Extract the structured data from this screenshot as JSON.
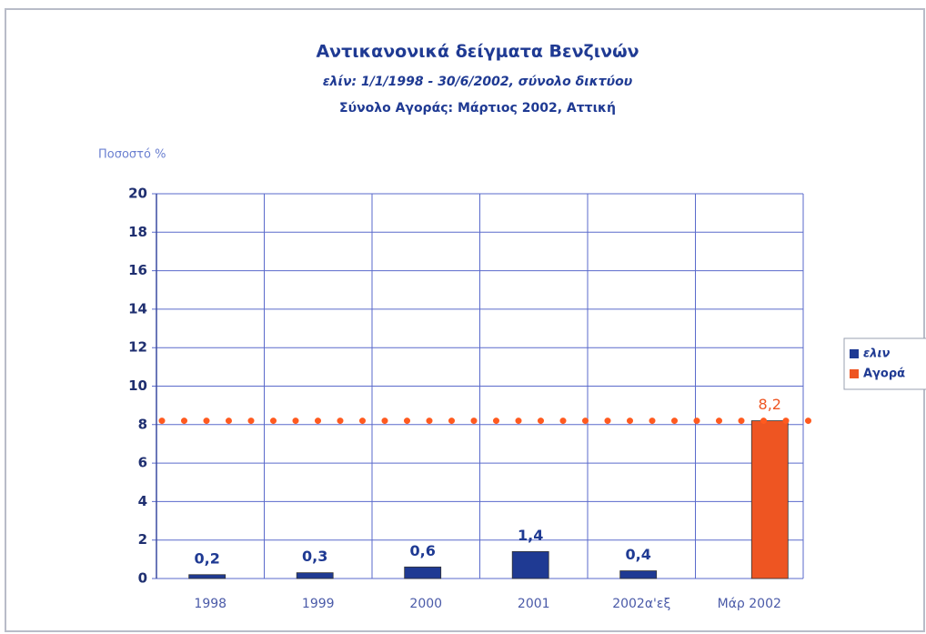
{
  "chart_data": {
    "type": "bar",
    "title": "Αντικανονικά δείγματα Βενζινών",
    "subtitle": [
      "ελίν: 1/1/1998 - 30/6/2002, σύνολο δικτύου",
      "Σύνολο Αγοράς: Μάρτιος 2002, Αττική"
    ],
    "y_label": "Ποσοστό %",
    "categories": [
      "1998",
      "1999",
      "2000",
      "2001",
      "2002α'εξ",
      "Μάρ 2002"
    ],
    "series": [
      {
        "name": "ελιν",
        "color": "#1f3a93",
        "values": [
          0.2,
          0.3,
          0.6,
          1.4,
          0.4,
          null
        ],
        "value_labels": [
          "0,2",
          "0,3",
          "0,6",
          "1,4",
          "0,4",
          null
        ]
      },
      {
        "name": "Αγορά",
        "color": "#ee5522",
        "values": [
          null,
          null,
          null,
          null,
          null,
          8.2
        ],
        "value_labels": [
          null,
          null,
          null,
          null,
          null,
          "8,2"
        ]
      }
    ],
    "reference_line": {
      "value": 8.2,
      "color": "#ff5a1f"
    },
    "ylim": [
      0,
      20
    ],
    "yticks": [
      0,
      2,
      4,
      6,
      8,
      10,
      12,
      14,
      16,
      18,
      20
    ],
    "grid": true,
    "legend": "right"
  }
}
